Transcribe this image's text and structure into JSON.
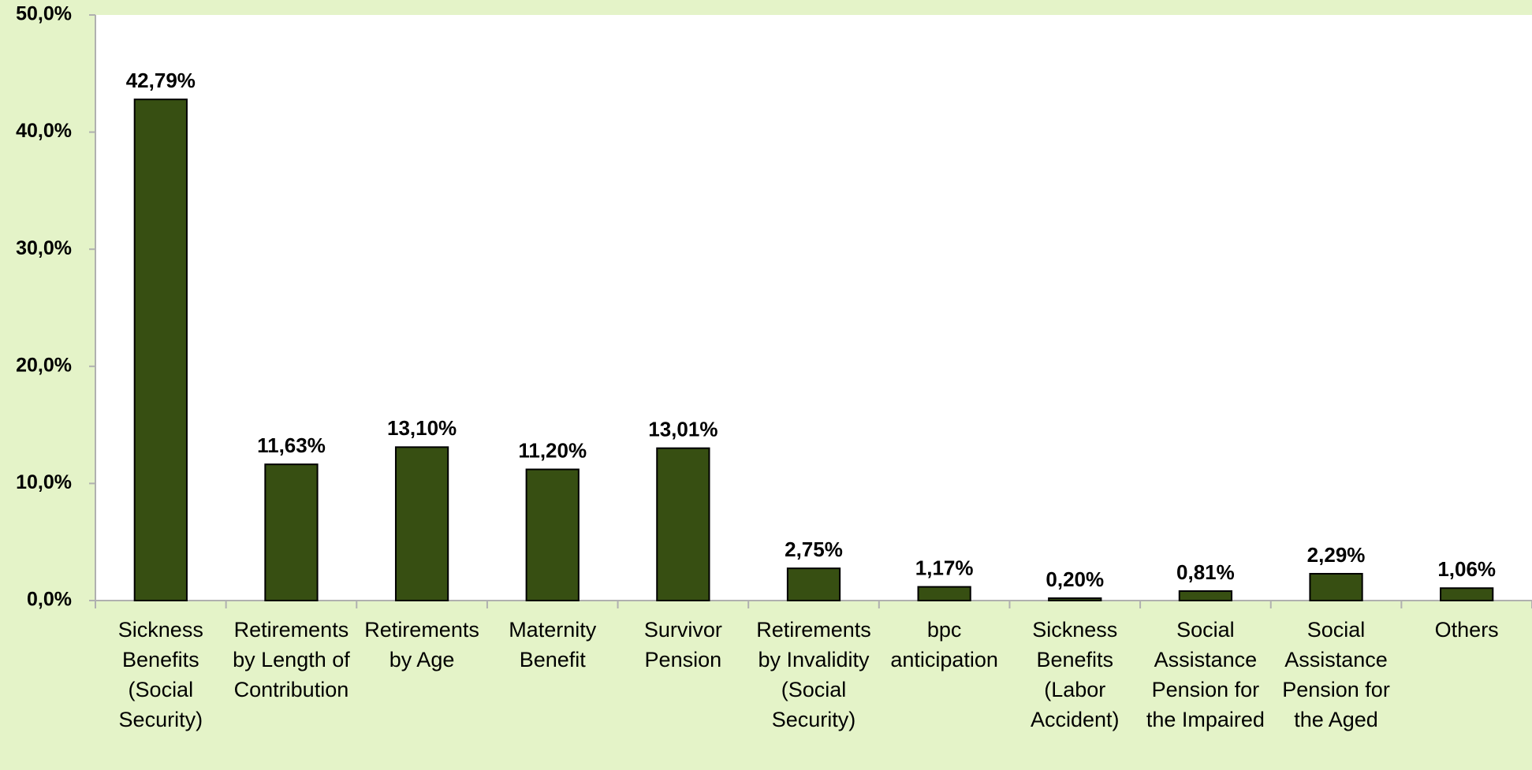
{
  "chart_data": {
    "type": "bar",
    "categories": [
      "Sickness Benefits (Social Security)",
      "Retirements by Length of Contribution",
      "Retirements by Age",
      "Maternity Benefit",
      "Survivor Pension",
      "Retirements by Invalidity (Social Security)",
      "bpc anticipation",
      "Sickness Benefits (Labor Accident)",
      "Social Assistance Pension for the Impaired",
      "Social Assistance Pension for the Aged",
      "Others"
    ],
    "values": [
      42.79,
      11.63,
      13.1,
      11.2,
      13.01,
      2.75,
      1.17,
      0.2,
      0.81,
      2.29,
      1.06
    ],
    "value_labels": [
      "42,79%",
      "11,63%",
      "13,10%",
      "11,20%",
      "13,01%",
      "2,75%",
      "1,17%",
      "0,20%",
      "0,81%",
      "2,29%",
      "1,06%"
    ],
    "color": "#374f12",
    "ylim": [
      0,
      50
    ],
    "yticks": [
      {
        "value": 0,
        "label": "0,0%"
      },
      {
        "value": 10,
        "label": "10,0%"
      },
      {
        "value": 20,
        "label": "20,0%"
      },
      {
        "value": 30,
        "label": "30,0%"
      },
      {
        "value": 40,
        "label": "40,0%"
      },
      {
        "value": 50,
        "label": "50,0%"
      }
    ],
    "grid": false
  }
}
